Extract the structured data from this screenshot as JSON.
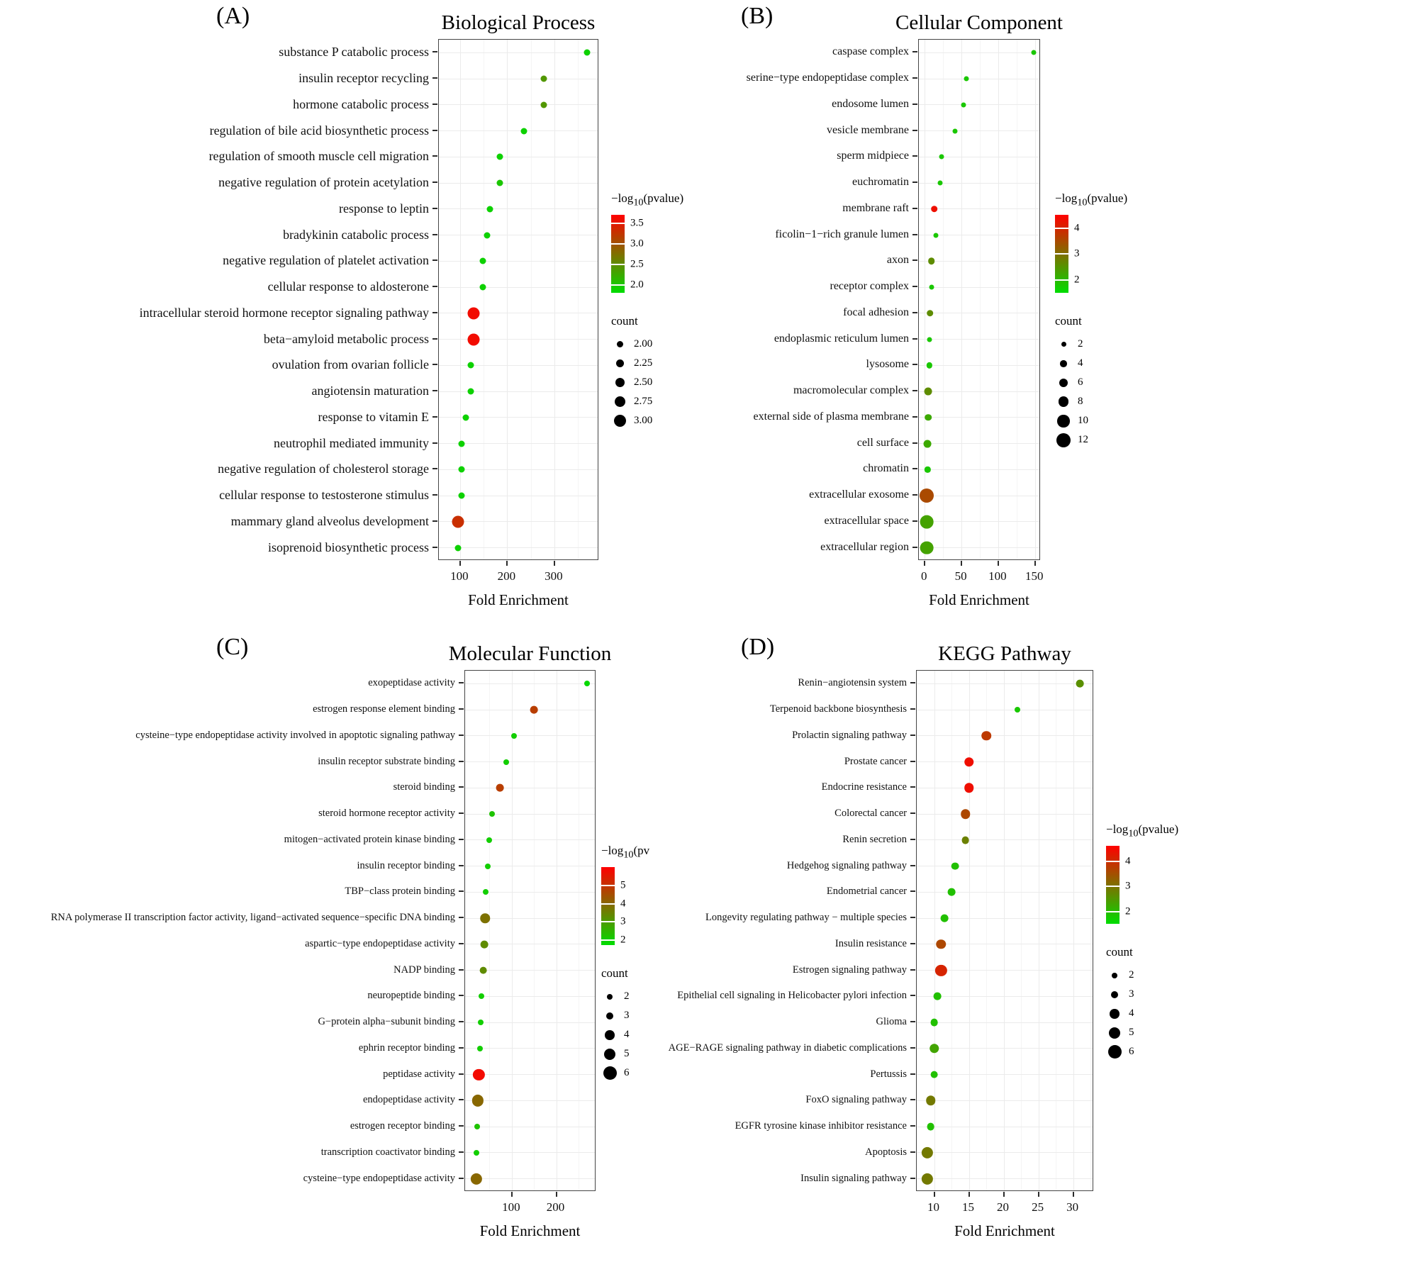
{
  "chart_data": [
    {
      "type": "scatter",
      "panel": "(A)",
      "title": "Biological Process",
      "xlabel": "Fold Enrichment",
      "ylabel": "",
      "legend_position": "right",
      "x_domain": [
        55,
        395
      ],
      "x_ticks": [
        100,
        200,
        300
      ],
      "color_scale": {
        "title_prefix": "−log",
        "title_sub": "10",
        "title_suffix": "(pvalue)",
        "ticks": [
          "3.5",
          "3.0",
          "2.5",
          "2.0"
        ],
        "domain": [
          1.8,
          3.7
        ],
        "low": "#00DD00",
        "high": "#FF0000"
      },
      "count_scale": {
        "title": "count",
        "labels": [
          "2.00",
          "2.25",
          "2.50",
          "2.75",
          "3.00"
        ],
        "values": [
          2,
          2.25,
          2.5,
          2.75,
          3
        ],
        "domain": [
          2,
          3
        ],
        "size_range": [
          9,
          17
        ]
      },
      "points": [
        {
          "term": "substance P catabolic process",
          "x": 370,
          "p": 1.9,
          "count": 2
        },
        {
          "term": "insulin receptor recycling",
          "x": 278,
          "p": 2.4,
          "count": 2
        },
        {
          "term": "hormone catabolic process",
          "x": 278,
          "p": 2.4,
          "count": 2
        },
        {
          "term": "regulation of bile acid biosynthetic process",
          "x": 235,
          "p": 1.9,
          "count": 2
        },
        {
          "term": "regulation of smooth muscle cell migration",
          "x": 185,
          "p": 1.9,
          "count": 2
        },
        {
          "term": "negative regulation of protein acetylation",
          "x": 185,
          "p": 2.0,
          "count": 2
        },
        {
          "term": "response to leptin",
          "x": 163,
          "p": 1.9,
          "count": 2
        },
        {
          "term": "bradykinin catabolic process",
          "x": 158,
          "p": 1.9,
          "count": 2
        },
        {
          "term": "negative regulation of platelet activation",
          "x": 148,
          "p": 1.9,
          "count": 2
        },
        {
          "term": "cellular response to aldosterone",
          "x": 148,
          "p": 1.9,
          "count": 2
        },
        {
          "term": "intracellular steroid hormone receptor signaling pathway",
          "x": 128,
          "p": 3.6,
          "count": 3
        },
        {
          "term": "beta−amyloid metabolic process",
          "x": 128,
          "p": 3.6,
          "count": 3
        },
        {
          "term": "ovulation from ovarian follicle",
          "x": 122,
          "p": 1.9,
          "count": 2
        },
        {
          "term": "angiotensin maturation",
          "x": 122,
          "p": 1.9,
          "count": 2
        },
        {
          "term": "response to vitamin E",
          "x": 112,
          "p": 1.9,
          "count": 2
        },
        {
          "term": "neutrophil mediated immunity",
          "x": 103,
          "p": 1.9,
          "count": 2
        },
        {
          "term": "negative regulation of cholesterol storage",
          "x": 103,
          "p": 1.9,
          "count": 2
        },
        {
          "term": "cellular response to testosterone stimulus",
          "x": 103,
          "p": 1.9,
          "count": 2
        },
        {
          "term": "mammary gland alveolus development",
          "x": 95,
          "p": 3.3,
          "count": 3
        },
        {
          "term": "isoprenoid biosynthetic process",
          "x": 95,
          "p": 1.9,
          "count": 2
        }
      ]
    },
    {
      "type": "scatter",
      "panel": "(B)",
      "title": "Cellular Component",
      "xlabel": "Fold Enrichment",
      "ylabel": "",
      "legend_position": "right",
      "x_domain": [
        -8,
        158
      ],
      "x_ticks": [
        0,
        50,
        100,
        150
      ],
      "color_scale": {
        "title_prefix": "−log",
        "title_sub": "10",
        "title_suffix": "(pvalue)",
        "ticks": [
          "4",
          "3",
          "2"
        ],
        "domain": [
          1.5,
          4.5
        ],
        "low": "#00DD00",
        "high": "#FF0000"
      },
      "count_scale": {
        "title": "count",
        "labels": [
          "2",
          "4",
          "6",
          "8",
          "10",
          "12"
        ],
        "values": [
          2,
          4,
          6,
          8,
          10,
          12
        ],
        "domain": [
          2,
          12
        ],
        "size_range": [
          7,
          20
        ]
      },
      "points": [
        {
          "term": "caspase complex",
          "x": 148,
          "p": 1.8,
          "count": 2
        },
        {
          "term": "serine−type endopeptidase complex",
          "x": 57,
          "p": 1.8,
          "count": 2
        },
        {
          "term": "endosome lumen",
          "x": 53,
          "p": 1.8,
          "count": 2
        },
        {
          "term": "vesicle membrane",
          "x": 41,
          "p": 1.8,
          "count": 2
        },
        {
          "term": "sperm midpiece",
          "x": 23,
          "p": 1.8,
          "count": 2
        },
        {
          "term": "euchromatin",
          "x": 21,
          "p": 1.8,
          "count": 2
        },
        {
          "term": "membrane raft",
          "x": 13,
          "p": 4.3,
          "count": 4
        },
        {
          "term": "ficolin−1−rich granule lumen",
          "x": 15,
          "p": 1.8,
          "count": 2
        },
        {
          "term": "axon",
          "x": 9,
          "p": 2.6,
          "count": 4
        },
        {
          "term": "receptor complex",
          "x": 9,
          "p": 1.8,
          "count": 2
        },
        {
          "term": "focal adhesion",
          "x": 7,
          "p": 2.6,
          "count": 4
        },
        {
          "term": "endoplasmic reticulum lumen",
          "x": 6,
          "p": 1.8,
          "count": 2
        },
        {
          "term": "lysosome",
          "x": 6,
          "p": 1.8,
          "count": 3
        },
        {
          "term": "macromolecular complex",
          "x": 5,
          "p": 2.6,
          "count": 5
        },
        {
          "term": "external side of plasma membrane",
          "x": 5,
          "p": 2.2,
          "count": 4
        },
        {
          "term": "cell surface",
          "x": 4,
          "p": 2.2,
          "count": 5
        },
        {
          "term": "chromatin",
          "x": 4,
          "p": 1.8,
          "count": 3
        },
        {
          "term": "extracellular exosome",
          "x": 3,
          "p": 3.5,
          "count": 12
        },
        {
          "term": "extracellular space",
          "x": 3,
          "p": 2.3,
          "count": 11
        },
        {
          "term": "extracellular region",
          "x": 3,
          "p": 2.3,
          "count": 11
        }
      ]
    },
    {
      "type": "scatter",
      "panel": "(C)",
      "title": "Molecular Function",
      "xlabel": "Fold Enrichment",
      "ylabel": "",
      "legend_position": "right",
      "x_domain": [
        -5,
        290
      ],
      "x_ticks": [
        100,
        200
      ],
      "color_scale": {
        "title_prefix": "−log",
        "title_sub": "10",
        "title_suffix": "(pv",
        "ticks": [
          "5",
          "4",
          "3",
          "2"
        ],
        "domain": [
          1.7,
          6.0
        ],
        "low": "#00DD00",
        "high": "#FF0000"
      },
      "count_scale": {
        "title": "count",
        "labels": [
          "2",
          "3",
          "4",
          "5",
          "6"
        ],
        "values": [
          2,
          3,
          4,
          5,
          6
        ],
        "domain": [
          2,
          6
        ],
        "size_range": [
          8,
          19
        ]
      },
      "points": [
        {
          "term": "exopeptidase activity",
          "x": 270,
          "p": 1.8,
          "count": 2
        },
        {
          "term": "estrogen response element binding",
          "x": 150,
          "p": 4.8,
          "count": 3
        },
        {
          "term": "cysteine−type endopeptidase activity involved in apoptotic signaling pathway",
          "x": 105,
          "p": 2.0,
          "count": 2
        },
        {
          "term": "insulin receptor substrate binding",
          "x": 88,
          "p": 2.0,
          "count": 2
        },
        {
          "term": "steroid binding",
          "x": 73,
          "p": 4.8,
          "count": 3
        },
        {
          "term": "steroid hormone receptor activity",
          "x": 55,
          "p": 2.2,
          "count": 2
        },
        {
          "term": "mitogen−activated protein kinase binding",
          "x": 50,
          "p": 2.0,
          "count": 2
        },
        {
          "term": "insulin receptor binding",
          "x": 46,
          "p": 2.0,
          "count": 2
        },
        {
          "term": "TBP−class protein binding",
          "x": 42,
          "p": 2.0,
          "count": 2
        },
        {
          "term": "RNA polymerase II transcription factor activity, ligand−activated sequence−specific DNA binding",
          "x": 40,
          "p": 3.8,
          "count": 4
        },
        {
          "term": "aspartic−type endopeptidase activity",
          "x": 38,
          "p": 3.3,
          "count": 3
        },
        {
          "term": "NADP binding",
          "x": 36,
          "p": 3.3,
          "count": 3
        },
        {
          "term": "neuropeptide binding",
          "x": 32,
          "p": 2.0,
          "count": 2
        },
        {
          "term": "G−protein alpha−subunit binding",
          "x": 30,
          "p": 2.0,
          "count": 2
        },
        {
          "term": "ephrin receptor binding",
          "x": 28,
          "p": 2.0,
          "count": 2
        },
        {
          "term": "peptidase activity",
          "x": 26,
          "p": 5.8,
          "count": 5
        },
        {
          "term": "endopeptidase activity",
          "x": 24,
          "p": 4.0,
          "count": 5
        },
        {
          "term": "estrogen receptor binding",
          "x": 22,
          "p": 2.2,
          "count": 2
        },
        {
          "term": "transcription coactivator binding",
          "x": 20,
          "p": 2.0,
          "count": 2
        },
        {
          "term": "cysteine−type endopeptidase activity",
          "x": 20,
          "p": 4.0,
          "count": 5
        }
      ]
    },
    {
      "type": "scatter",
      "panel": "(D)",
      "title": "KEGG Pathway",
      "xlabel": "Fold Enrichment",
      "ylabel": "",
      "legend_position": "right",
      "x_domain": [
        7.5,
        33
      ],
      "x_ticks": [
        10,
        15,
        20,
        25,
        30
      ],
      "color_scale": {
        "title_prefix": "−log",
        "title_sub": "10",
        "title_suffix": "(pvalue)",
        "ticks": [
          "4",
          "3",
          "2"
        ],
        "domain": [
          1.5,
          4.6
        ],
        "low": "#00DD00",
        "high": "#FF0000"
      },
      "count_scale": {
        "title": "count",
        "labels": [
          "2",
          "3",
          "4",
          "5",
          "6"
        ],
        "values": [
          2,
          3,
          4,
          5,
          6
        ],
        "domain": [
          2,
          6
        ],
        "size_range": [
          8,
          19
        ]
      },
      "points": [
        {
          "term": "Renin−angiotensin system",
          "x": 31,
          "p": 2.6,
          "count": 3
        },
        {
          "term": "Terpenoid backbone biosynthesis",
          "x": 22,
          "p": 1.8,
          "count": 2
        },
        {
          "term": "Prolactin signaling pathway",
          "x": 17.5,
          "p": 3.8,
          "count": 4
        },
        {
          "term": "Prostate cancer",
          "x": 15,
          "p": 4.4,
          "count": 4
        },
        {
          "term": "Endocrine resistance",
          "x": 15,
          "p": 4.4,
          "count": 4
        },
        {
          "term": "Colorectal cancer",
          "x": 14.5,
          "p": 3.6,
          "count": 4
        },
        {
          "term": "Renin secretion",
          "x": 14.5,
          "p": 2.8,
          "count": 3
        },
        {
          "term": "Hedgehog signaling pathway",
          "x": 13,
          "p": 1.9,
          "count": 3
        },
        {
          "term": "Endometrial cancer",
          "x": 12.5,
          "p": 1.9,
          "count": 3
        },
        {
          "term": "Longevity regulating pathway − multiple species",
          "x": 11.5,
          "p": 1.9,
          "count": 3
        },
        {
          "term": "Insulin resistance",
          "x": 11,
          "p": 3.6,
          "count": 4
        },
        {
          "term": "Estrogen signaling pathway",
          "x": 11,
          "p": 4.1,
          "count": 5
        },
        {
          "term": "Epithelial cell signaling in Helicobacter pylori infection",
          "x": 10.5,
          "p": 1.9,
          "count": 3
        },
        {
          "term": "Glioma",
          "x": 10,
          "p": 1.9,
          "count": 3
        },
        {
          "term": "AGE−RAGE signaling pathway in diabetic complications",
          "x": 10,
          "p": 2.3,
          "count": 4
        },
        {
          "term": "Pertussis",
          "x": 10,
          "p": 1.9,
          "count": 3
        },
        {
          "term": "FoxO signaling pathway",
          "x": 9.5,
          "p": 2.9,
          "count": 4
        },
        {
          "term": "EGFR tyrosine kinase inhibitor resistance",
          "x": 9.5,
          "p": 1.9,
          "count": 3
        },
        {
          "term": "Apoptosis",
          "x": 9,
          "p": 2.9,
          "count": 5
        },
        {
          "term": "Insulin signaling pathway",
          "x": 9,
          "p": 2.9,
          "count": 5
        }
      ]
    }
  ]
}
